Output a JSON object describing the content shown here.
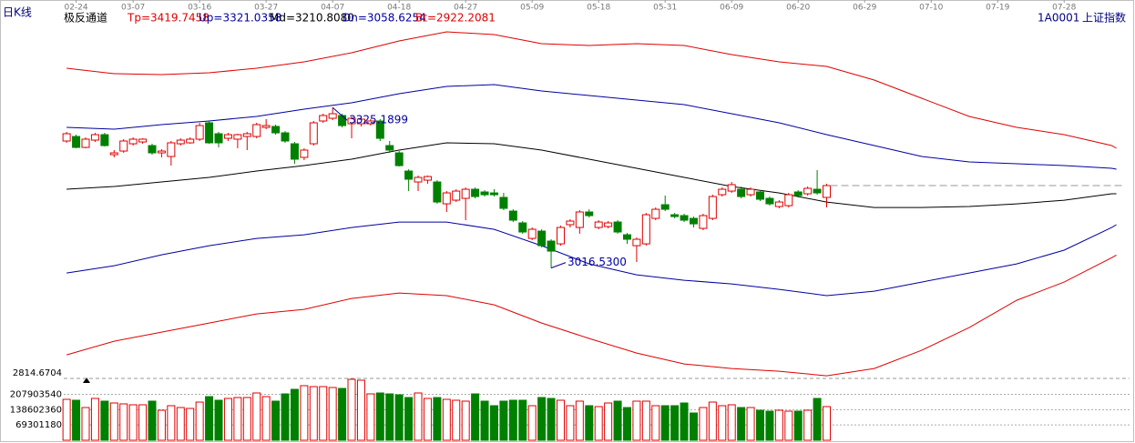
{
  "header": {
    "period": "日K线",
    "indicator": "极反通道",
    "params": [
      {
        "text": "Tp=3419.7458",
        "color": "#e00000"
      },
      {
        "text": "Up=3321.0358",
        "color": "#0000a0"
      },
      {
        "text": "Md=3210.8080",
        "color": "#000000"
      },
      {
        "text": "Dn=3058.6254",
        "color": "#0000a0"
      },
      {
        "text": "Bt=2922.2081",
        "color": "#e00000"
      }
    ],
    "code": "1A0001",
    "name": "上证指数"
  },
  "chart_data": [
    {
      "type": "candlestick",
      "ylim": [
        2814.6704,
        3532
      ],
      "yticks": [
        2814.6704
      ],
      "xlim": [
        -0.3,
        111.4
      ],
      "xticks": [
        {
          "value": 1,
          "label": "02-24"
        },
        {
          "value": 7,
          "label": "03-07"
        },
        {
          "value": 14,
          "label": "03-16"
        },
        {
          "value": 21,
          "label": "03-27"
        },
        {
          "value": 28,
          "label": "04-07"
        },
        {
          "value": 35,
          "label": "04-18"
        },
        {
          "value": 42,
          "label": "04-27"
        },
        {
          "value": 49,
          "label": "05-09"
        },
        {
          "value": 56,
          "label": "05-18"
        },
        {
          "value": 63,
          "label": "05-31"
        },
        {
          "value": 70,
          "label": "06-09"
        },
        {
          "value": 77,
          "label": "06-20"
        },
        {
          "value": 84,
          "label": "06-29"
        },
        {
          "value": 91,
          "label": "07-10"
        },
        {
          "value": 98,
          "label": "07-19"
        },
        {
          "value": 105,
          "label": "07-28"
        }
      ],
      "up_color": "#e00000",
      "down_color": "#008000",
      "ohlc": [
        [
          3260.8,
          3278.3,
          3257.3,
          3274.8
        ],
        [
          3269.5,
          3273.0,
          3246.8,
          3248.5
        ],
        [
          3248.5,
          3267.8,
          3246.8,
          3264.3
        ],
        [
          3262.5,
          3276.5,
          3259.0,
          3273.0
        ],
        [
          3273.0,
          3276.5,
          3250.3,
          3252.0
        ],
        [
          3234.5,
          3243.3,
          3229.3,
          3238.0
        ],
        [
          3241.5,
          3264.3,
          3238.0,
          3260.8
        ],
        [
          3255.5,
          3267.8,
          3252.0,
          3264.3
        ],
        [
          3259.0,
          3266.0,
          3255.5,
          3264.3
        ],
        [
          3252.0,
          3255.5,
          3234.5,
          3238.0
        ],
        [
          3238.0,
          3245.0,
          3229.3,
          3241.5
        ],
        [
          3231.0,
          3260.8,
          3213.5,
          3257.3
        ],
        [
          3255.5,
          3266.0,
          3252.0,
          3262.5
        ],
        [
          3257.3,
          3267.8,
          3255.5,
          3264.3
        ],
        [
          3264.3,
          3295.8,
          3260.8,
          3290.5
        ],
        [
          3295.8,
          3299.3,
          3255.5,
          3257.3
        ],
        [
          3274.8,
          3278.3,
          3248.5,
          3257.3
        ],
        [
          3266.0,
          3276.5,
          3260.8,
          3273.0
        ],
        [
          3264.3,
          3274.8,
          3246.8,
          3273.0
        ],
        [
          3269.5,
          3278.3,
          3243.3,
          3274.8
        ],
        [
          3269.5,
          3295.8,
          3266.0,
          3292.3
        ],
        [
          3287.0,
          3302.8,
          3283.5,
          3290.5
        ],
        [
          3288.8,
          3292.3,
          3273.0,
          3276.5
        ],
        [
          3276.5,
          3280.0,
          3257.3,
          3260.8
        ],
        [
          3255.5,
          3259.0,
          3217.0,
          3225.8
        ],
        [
          3229.3,
          3246.8,
          3224.0,
          3243.3
        ],
        [
          3255.5,
          3299.3,
          3252.0,
          3295.8
        ],
        [
          3299.3,
          3313.3,
          3295.8,
          3309.8
        ],
        [
          3304.5,
          3325.1899,
          3301.0,
          3313.3
        ],
        [
          3309.8,
          3313.3,
          3287.0,
          3290.5
        ],
        [
          3294.0,
          3308.0,
          3266.0,
          3304.5
        ],
        [
          3294.0,
          3306.3,
          3288.8,
          3302.8
        ],
        [
          3294.0,
          3302.8,
          3290.5,
          3299.3
        ],
        [
          3299.3,
          3302.8,
          3260.8,
          3266.0
        ],
        [
          3252.0,
          3260.8,
          3238.0,
          3243.3
        ],
        [
          3238.0,
          3241.5,
          3211.8,
          3213.5
        ],
        [
          3203.0,
          3206.5,
          3164.5,
          3187.3
        ],
        [
          3182.0,
          3194.3,
          3164.5,
          3190.8
        ],
        [
          3185.5,
          3194.3,
          3178.5,
          3192.5
        ],
        [
          3182.0,
          3185.5,
          3140.0,
          3143.5
        ],
        [
          3140.0,
          3164.5,
          3124.3,
          3161.0
        ],
        [
          3147.0,
          3168.0,
          3143.5,
          3164.5
        ],
        [
          3150.5,
          3171.5,
          3108.5,
          3168.0
        ],
        [
          3168.0,
          3171.5,
          3150.5,
          3154.0
        ],
        [
          3162.8,
          3166.3,
          3154.0,
          3157.5
        ],
        [
          3161.0,
          3168.0,
          3154.0,
          3157.5
        ],
        [
          3152.3,
          3161.0,
          3127.8,
          3131.3
        ],
        [
          3126.0,
          3129.5,
          3105.0,
          3108.5
        ],
        [
          3103.3,
          3106.8,
          3082.3,
          3085.8
        ],
        [
          3073.5,
          3094.5,
          3070.0,
          3091.0
        ],
        [
          3087.5,
          3091.0,
          3056.0,
          3059.5
        ],
        [
          3068.3,
          3071.8,
          3016.53,
          3049.0
        ],
        [
          3063.0,
          3098.0,
          3059.5,
          3094.5
        ],
        [
          3099.8,
          3110.3,
          3094.5,
          3106.8
        ],
        [
          3094.5,
          3127.8,
          3082.3,
          3124.3
        ],
        [
          3124.3,
          3129.5,
          3113.8,
          3117.3
        ],
        [
          3094.5,
          3108.5,
          3091.0,
          3105.0
        ],
        [
          3096.3,
          3106.8,
          3092.8,
          3103.3
        ],
        [
          3105.0,
          3108.5,
          3082.3,
          3085.8
        ],
        [
          3080.5,
          3084.0,
          3063.0,
          3071.8
        ],
        [
          3059.5,
          3075.3,
          3028.0,
          3071.8
        ],
        [
          3063.0,
          3122.5,
          3059.5,
          3119.0
        ],
        [
          3112.0,
          3133.0,
          3108.5,
          3129.5
        ],
        [
          3138.3,
          3155.8,
          3126.0,
          3129.5
        ],
        [
          3119.0,
          3122.5,
          3112.0,
          3115.5
        ],
        [
          3117.3,
          3120.8,
          3105.0,
          3108.5
        ],
        [
          3112.0,
          3115.5,
          3094.5,
          3101.5
        ],
        [
          3092.8,
          3120.8,
          3089.3,
          3117.3
        ],
        [
          3112.0,
          3157.5,
          3108.5,
          3154.0
        ],
        [
          3157.5,
          3171.5,
          3154.0,
          3168.0
        ],
        [
          3164.5,
          3182.0,
          3161.0,
          3176.8
        ],
        [
          3168.0,
          3173.3,
          3150.5,
          3154.0
        ],
        [
          3157.5,
          3171.5,
          3154.0,
          3168.0
        ],
        [
          3162.8,
          3166.3,
          3145.3,
          3148.8
        ],
        [
          3150.5,
          3154.0,
          3136.5,
          3140.0
        ],
        [
          3134.8,
          3147.0,
          3131.3,
          3143.5
        ],
        [
          3136.5,
          3161.0,
          3133.0,
          3157.5
        ],
        [
          3162.8,
          3166.3,
          3152.3,
          3155.8
        ],
        [
          3159.3,
          3173.3,
          3155.8,
          3169.8
        ],
        [
          3168.0,
          3204.8,
          3157.5,
          3161.0
        ],
        [
          3152.3,
          3178.5,
          3133.0,
          3175.0
        ]
      ],
      "lines": [
        {
          "color": "#e00000",
          "x": [
            0,
            5,
            10,
            15,
            20,
            25,
            30,
            35,
            40,
            45,
            50,
            55,
            60,
            65,
            70,
            75,
            80,
            85,
            90,
            95,
            100,
            105,
            110,
            110.5
          ],
          "values": [
            3400.8,
            3390.3,
            3388.5,
            3392.0,
            3400.8,
            3413.0,
            3430.5,
            3453.3,
            3470.8,
            3465.5,
            3448.0,
            3444.5,
            3448.0,
            3444.5,
            3427.0,
            3413.0,
            3404.3,
            3378.0,
            3343.0,
            3308.0,
            3287.0,
            3273.0,
            3252.0,
            3246.8
          ]
        },
        {
          "color": "#0000a0",
          "x": [
            0,
            5,
            10,
            15,
            20,
            25,
            30,
            35,
            40,
            45,
            50,
            55,
            60,
            65,
            70,
            75,
            80,
            85,
            90,
            95,
            100,
            105,
            110,
            110.5
          ],
          "values": [
            3287.0,
            3283.5,
            3292.3,
            3299.3,
            3308.0,
            3322.0,
            3334.3,
            3351.8,
            3365.8,
            3369.3,
            3357.0,
            3348.3,
            3339.5,
            3330.8,
            3313.3,
            3295.8,
            3273.0,
            3252.0,
            3231.0,
            3220.5,
            3217.0,
            3213.5,
            3208.3,
            3206.5
          ]
        },
        {
          "color": "#000000",
          "x": [
            0,
            5,
            10,
            15,
            20,
            25,
            30,
            35,
            40,
            45,
            50,
            55,
            60,
            65,
            70,
            75,
            80,
            85,
            90,
            95,
            100,
            105,
            110,
            110.5
          ],
          "values": [
            3168.0,
            3173.3,
            3182.0,
            3190.8,
            3203.0,
            3213.5,
            3225.8,
            3243.3,
            3257.3,
            3255.5,
            3243.3,
            3225.8,
            3208.3,
            3190.8,
            3173.3,
            3161.0,
            3143.5,
            3133.0,
            3133.0,
            3134.8,
            3140.0,
            3147.0,
            3159.3,
            3159.3
          ]
        },
        {
          "color": "#0000a0",
          "x": [
            0,
            5,
            10,
            15,
            20,
            25,
            30,
            35,
            40,
            45,
            50,
            55,
            60,
            65,
            70,
            75,
            80,
            85,
            90,
            95,
            100,
            105,
            110,
            110.5
          ],
          "values": [
            3007.0,
            3021.0,
            3042.0,
            3059.5,
            3073.5,
            3080.5,
            3094.5,
            3105.0,
            3105.0,
            3091.0,
            3059.5,
            3024.5,
            3003.5,
            2993.0,
            2986.0,
            2975.5,
            2963.3,
            2972.0,
            2989.5,
            3007.0,
            3024.5,
            3050.8,
            3094.5,
            3099.8
          ]
        },
        {
          "color": "#e00000",
          "x": [
            0,
            5,
            10,
            15,
            20,
            25,
            30,
            35,
            40,
            45,
            50,
            55,
            60,
            65,
            70,
            75,
            80,
            85,
            90,
            95,
            100,
            105,
            110,
            110.5
          ],
          "values": [
            2849.5,
            2875.8,
            2893.3,
            2910.8,
            2928.3,
            2937.0,
            2958.0,
            2968.5,
            2963.3,
            2945.8,
            2910.8,
            2881.0,
            2853.0,
            2832.0,
            2823.3,
            2818.0,
            2809.3,
            2823.3,
            2858.3,
            2902.0,
            2954.5,
            2989.5,
            3036.3,
            3041.5
          ]
        }
      ],
      "annotations": [
        {
          "x": 28,
          "value": 3325.1899
        },
        {
          "x": 51,
          "value": 3016.53,
          "label": "3016.5300"
        }
      ]
    },
    {
      "type": "bar",
      "ylim": [
        0,
        280000000
      ],
      "yticks": [
        69301180,
        138602360,
        207903540
      ],
      "values": [
        185300000,
        181200000,
        148200000,
        189400000,
        177100000,
        168800000,
        164700000,
        160600000,
        160600000,
        177100000,
        135900000,
        156500000,
        148200000,
        144100000,
        172900000,
        197600000,
        181200000,
        189400000,
        193500000,
        193500000,
        214100000,
        197600000,
        177100000,
        210000000,
        230600000,
        247100000,
        242900000,
        242900000,
        238800000,
        234700000,
        276000000,
        271800000,
        210000000,
        214100000,
        210000000,
        205900000,
        193500000,
        214100000,
        189400000,
        193500000,
        185300000,
        181200000,
        177100000,
        210000000,
        177100000,
        156500000,
        177100000,
        181200000,
        181200000,
        156500000,
        193500000,
        189400000,
        181200000,
        156500000,
        177100000,
        156500000,
        152400000,
        168800000,
        177100000,
        148200000,
        177100000,
        177100000,
        156500000,
        156500000,
        156500000,
        168800000,
        123500000,
        148200000,
        172900000,
        156500000,
        160600000,
        148200000,
        148200000,
        135900000,
        131800000,
        135900000,
        131800000,
        131800000,
        135900000,
        189400000,
        152400000
      ]
    }
  ]
}
